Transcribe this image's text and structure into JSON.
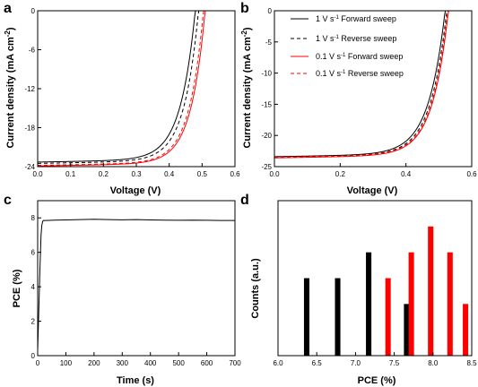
{
  "chart_data": [
    {
      "panel": "a",
      "type": "line",
      "xlabel": "Voltage (V)",
      "ylabel": "Current density (mA cm",
      "ylabel_sup": "-2",
      "ylabel_end": ")",
      "xlim": [
        0,
        0.6
      ],
      "ylim": [
        -24,
        0
      ],
      "xticks": [
        0.0,
        0.1,
        0.2,
        0.3,
        0.4,
        0.5,
        0.6
      ],
      "xtick_labels": [
        "0.0",
        "0.1",
        "0.2",
        "0.3",
        "0.4",
        "0.5",
        "0.6"
      ],
      "yticks": [
        0,
        -6,
        -12,
        -18,
        -24
      ],
      "ytick_labels": [
        "0",
        "-6",
        "-12",
        "-18",
        "-24"
      ],
      "series": [
        {
          "color": "#000000",
          "dash": "solid",
          "jsc": 23.3,
          "voc": 0.48,
          "v0": 0.045
        },
        {
          "color": "#000000",
          "dash": "dashed",
          "jsc": 23.5,
          "voc": 0.49,
          "v0": 0.044
        },
        {
          "color": "#ff0000",
          "dash": "solid",
          "jsc": 23.9,
          "voc": 0.51,
          "v0": 0.043
        },
        {
          "color": "#ff0000",
          "dash": "dashed",
          "jsc": 23.8,
          "voc": 0.505,
          "v0": 0.043
        }
      ]
    },
    {
      "panel": "b",
      "type": "line",
      "xlabel": "Voltage (V)",
      "ylabel": "Current density (mA cm",
      "ylabel_sup": "-2",
      "ylabel_end": ")",
      "xlim": [
        0,
        0.6
      ],
      "ylim": [
        -25,
        0
      ],
      "xticks": [
        0.0,
        0.2,
        0.4,
        0.6
      ],
      "xtick_labels": [
        "0.0",
        "0.2",
        "0.4",
        "0.6"
      ],
      "yticks": [
        0,
        -5,
        -10,
        -15,
        -20,
        -25
      ],
      "ytick_labels": [
        "0",
        "-5",
        "-10",
        "-15",
        "-20",
        "-25"
      ],
      "legend_position": "top-right",
      "series": [
        {
          "name_pre": "1 V s",
          "name_sup": "-1",
          "name_post": " Forward sweep",
          "color": "#000000",
          "dash": "solid",
          "jsc": 23.4,
          "voc": 0.52,
          "v0": 0.05
        },
        {
          "name_pre": "1 V s",
          "name_sup": "-1",
          "name_post": " Reverse sweep",
          "color": "#000000",
          "dash": "dashed",
          "jsc": 23.5,
          "voc": 0.525,
          "v0": 0.049
        },
        {
          "name_pre": "0.1 V s",
          "name_sup": "-1",
          "name_post": " Forward sweep",
          "color": "#ff0000",
          "dash": "solid",
          "jsc": 23.6,
          "voc": 0.53,
          "v0": 0.048
        },
        {
          "name_pre": "0.1 V s",
          "name_sup": "-1",
          "name_post": " Reverse sweep",
          "color": "#ff0000",
          "dash": "dashed",
          "jsc": 23.5,
          "voc": 0.528,
          "v0": 0.048
        }
      ]
    },
    {
      "panel": "c",
      "type": "line",
      "xlabel": "Time (s)",
      "ylabel": "PCE (%)",
      "xlim": [
        0,
        700
      ],
      "ylim": [
        0,
        9
      ],
      "xticks": [
        0,
        100,
        200,
        300,
        400,
        500,
        600,
        700
      ],
      "xtick_labels": [
        "0",
        "100",
        "200",
        "300",
        "400",
        "500",
        "600",
        "700"
      ],
      "yticks": [
        0,
        2,
        4,
        6,
        8
      ],
      "ytick_labels": [
        "0",
        "2",
        "4",
        "6",
        "8"
      ],
      "series": [
        {
          "color": "#000000",
          "x": [
            0,
            3,
            8,
            12,
            15,
            18,
            20,
            30,
            60,
            100,
            150,
            200,
            250,
            300,
            350,
            400,
            450,
            500,
            550,
            600,
            650,
            700
          ],
          "y": [
            0.3,
            2.0,
            5.0,
            7.0,
            7.6,
            7.8,
            7.85,
            7.85,
            7.87,
            7.88,
            7.9,
            7.92,
            7.9,
            7.89,
            7.9,
            7.88,
            7.87,
            7.86,
            7.87,
            7.86,
            7.85,
            7.85
          ]
        }
      ]
    },
    {
      "panel": "d",
      "type": "bar",
      "xlabel": "PCE (%)",
      "ylabel": "Counts (a.u.)",
      "xlim": [
        6.0,
        8.5
      ],
      "ylim": [
        0,
        6
      ],
      "xticks": [
        6.0,
        6.5,
        7.0,
        7.5,
        8.0,
        8.5
      ],
      "xtick_labels": [
        "6.0",
        "6.5",
        "7.0",
        "7.5",
        "8.0",
        "8.5"
      ],
      "bar_width": 0.07,
      "series": [
        {
          "color": "#000000",
          "x": [
            6.37,
            6.77,
            7.17,
            7.66
          ],
          "values": [
            3,
            3,
            4,
            2
          ]
        },
        {
          "color": "#ff0000",
          "x": [
            7.42,
            7.72,
            7.97,
            8.22,
            8.42
          ],
          "values": [
            3,
            4,
            5,
            4,
            2
          ]
        }
      ]
    }
  ]
}
